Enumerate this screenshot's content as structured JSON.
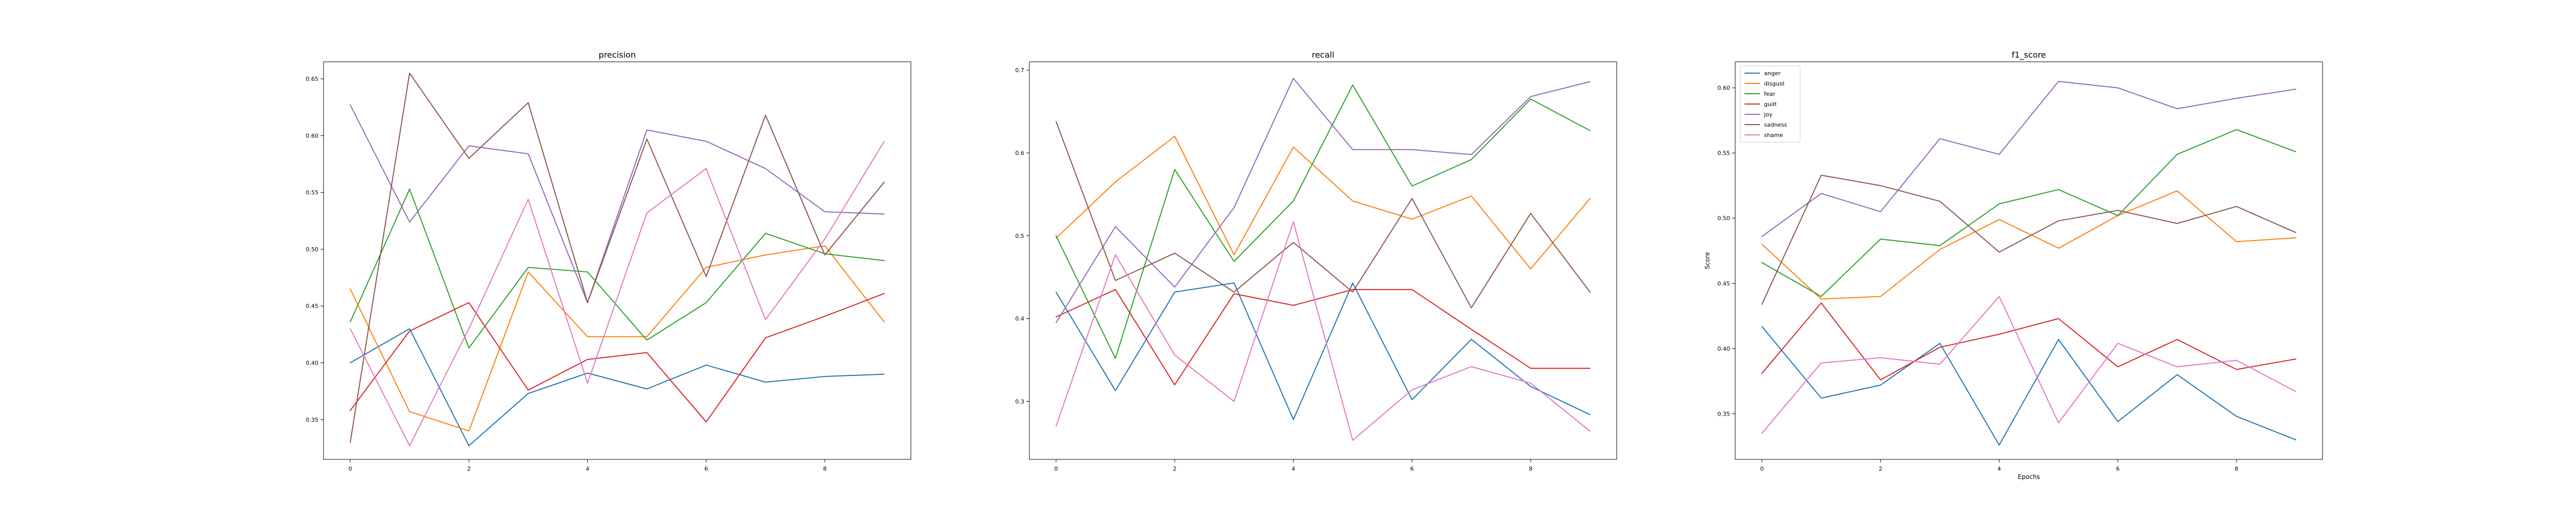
{
  "figure": {
    "background": "#ffffff"
  },
  "chart_data": [
    {
      "type": "line",
      "title": "precision",
      "xlabel": "",
      "ylabel": "",
      "x": [
        0,
        1,
        2,
        3,
        4,
        5,
        6,
        7,
        8,
        9
      ],
      "xlim": [
        -0.45,
        9.45
      ],
      "ylim": [
        0.315,
        0.665
      ],
      "xticks": [
        0,
        2,
        4,
        6,
        8
      ],
      "yticks": [
        0.35,
        0.4,
        0.45,
        0.5,
        0.55,
        0.6,
        0.65
      ],
      "ytick_labels": [
        "0.35",
        "0.40",
        "0.45",
        "0.50",
        "0.55",
        "0.60",
        "0.65"
      ],
      "grid": false,
      "legend": false,
      "series": [
        {
          "name": "anger",
          "color": "#1f77b4",
          "values": [
            0.4,
            0.43,
            0.327,
            0.373,
            0.391,
            0.377,
            0.398,
            0.383,
            0.388,
            0.39
          ]
        },
        {
          "name": "disgust",
          "color": "#ff7f0e",
          "values": [
            0.465,
            0.357,
            0.34,
            0.48,
            0.423,
            0.423,
            0.484,
            0.495,
            0.503,
            0.436
          ]
        },
        {
          "name": "fear",
          "color": "#2ca02c",
          "values": [
            0.436,
            0.553,
            0.413,
            0.484,
            0.48,
            0.42,
            0.453,
            0.514,
            0.496,
            0.49
          ]
        },
        {
          "name": "guilt",
          "color": "#d62728",
          "values": [
            0.358,
            0.428,
            0.453,
            0.376,
            0.403,
            0.409,
            0.348,
            0.422,
            0.441,
            0.461
          ]
        },
        {
          "name": "joy",
          "color": "#9467bd",
          "values": [
            0.627,
            0.524,
            0.591,
            0.584,
            0.453,
            0.605,
            0.595,
            0.571,
            0.533,
            0.531
          ]
        },
        {
          "name": "sadness",
          "color": "#8c564b",
          "values": [
            0.33,
            0.655,
            0.58,
            0.629,
            0.453,
            0.597,
            0.476,
            0.618,
            0.495,
            0.559
          ]
        },
        {
          "name": "shame",
          "color": "#e377c2",
          "values": [
            0.43,
            0.327,
            0.43,
            0.544,
            0.382,
            0.532,
            0.571,
            0.438,
            0.509,
            0.595
          ]
        }
      ]
    },
    {
      "type": "line",
      "title": "recall",
      "xlabel": "",
      "ylabel": "",
      "x": [
        0,
        1,
        2,
        3,
        4,
        5,
        6,
        7,
        8,
        9
      ],
      "xlim": [
        -0.45,
        9.45
      ],
      "ylim": [
        0.23,
        0.71
      ],
      "xticks": [
        0,
        2,
        4,
        6,
        8
      ],
      "yticks": [
        0.3,
        0.4,
        0.5,
        0.6,
        0.7
      ],
      "ytick_labels": [
        "0.3",
        "0.4",
        "0.5",
        "0.6",
        "0.7"
      ],
      "grid": false,
      "legend": false,
      "series": [
        {
          "name": "anger",
          "color": "#1f77b4",
          "values": [
            0.432,
            0.313,
            0.432,
            0.443,
            0.278,
            0.443,
            0.302,
            0.375,
            0.318,
            0.284
          ]
        },
        {
          "name": "disgust",
          "color": "#ff7f0e",
          "values": [
            0.497,
            0.565,
            0.62,
            0.477,
            0.607,
            0.542,
            0.52,
            0.548,
            0.46,
            0.545
          ]
        },
        {
          "name": "fear",
          "color": "#2ca02c",
          "values": [
            0.5,
            0.352,
            0.58,
            0.469,
            0.542,
            0.682,
            0.56,
            0.592,
            0.665,
            0.627
          ]
        },
        {
          "name": "guilt",
          "color": "#d62728",
          "values": [
            0.402,
            0.435,
            0.32,
            0.43,
            0.416,
            0.435,
            0.435,
            0.387,
            0.34,
            0.34
          ]
        },
        {
          "name": "joy",
          "color": "#9467bd",
          "values": [
            0.395,
            0.511,
            0.438,
            0.534,
            0.69,
            0.604,
            0.604,
            0.598,
            0.668,
            0.686
          ]
        },
        {
          "name": "sadness",
          "color": "#8c564b",
          "values": [
            0.638,
            0.446,
            0.479,
            0.432,
            0.492,
            0.432,
            0.545,
            0.413,
            0.527,
            0.432
          ]
        },
        {
          "name": "shame",
          "color": "#e377c2",
          "values": [
            0.27,
            0.477,
            0.356,
            0.3,
            0.517,
            0.253,
            0.314,
            0.342,
            0.322,
            0.264
          ]
        }
      ]
    },
    {
      "type": "line",
      "title": "f1_score",
      "xlabel": "Epochs",
      "ylabel": "Score",
      "x": [
        0,
        1,
        2,
        3,
        4,
        5,
        6,
        7,
        8,
        9
      ],
      "xlim": [
        -0.45,
        9.45
      ],
      "ylim": [
        0.315,
        0.62
      ],
      "xticks": [
        0,
        2,
        4,
        6,
        8
      ],
      "yticks": [
        0.35,
        0.4,
        0.45,
        0.5,
        0.55,
        0.6
      ],
      "ytick_labels": [
        "0.35",
        "0.40",
        "0.45",
        "0.50",
        "0.55",
        "0.60"
      ],
      "grid": false,
      "legend": true,
      "legend_position": "top-left",
      "series": [
        {
          "name": "anger",
          "color": "#1f77b4",
          "values": [
            0.417,
            0.362,
            0.372,
            0.404,
            0.326,
            0.407,
            0.344,
            0.38,
            0.348,
            0.33
          ]
        },
        {
          "name": "disgust",
          "color": "#ff7f0e",
          "values": [
            0.48,
            0.438,
            0.44,
            0.476,
            0.499,
            0.477,
            0.502,
            0.521,
            0.482,
            0.485
          ]
        },
        {
          "name": "fear",
          "color": "#2ca02c",
          "values": [
            0.466,
            0.44,
            0.484,
            0.479,
            0.511,
            0.522,
            0.502,
            0.549,
            0.568,
            0.551
          ]
        },
        {
          "name": "guilt",
          "color": "#d62728",
          "values": [
            0.381,
            0.435,
            0.376,
            0.401,
            0.411,
            0.423,
            0.386,
            0.407,
            0.384,
            0.392
          ]
        },
        {
          "name": "joy",
          "color": "#9467bd",
          "values": [
            0.486,
            0.519,
            0.505,
            0.561,
            0.549,
            0.605,
            0.6,
            0.584,
            0.592,
            0.599
          ]
        },
        {
          "name": "sadness",
          "color": "#8c564b",
          "values": [
            0.434,
            0.533,
            0.525,
            0.513,
            0.474,
            0.498,
            0.506,
            0.496,
            0.509,
            0.489
          ]
        },
        {
          "name": "shame",
          "color": "#e377c2",
          "values": [
            0.335,
            0.389,
            0.393,
            0.388,
            0.44,
            0.343,
            0.404,
            0.386,
            0.391,
            0.367
          ]
        }
      ]
    }
  ]
}
